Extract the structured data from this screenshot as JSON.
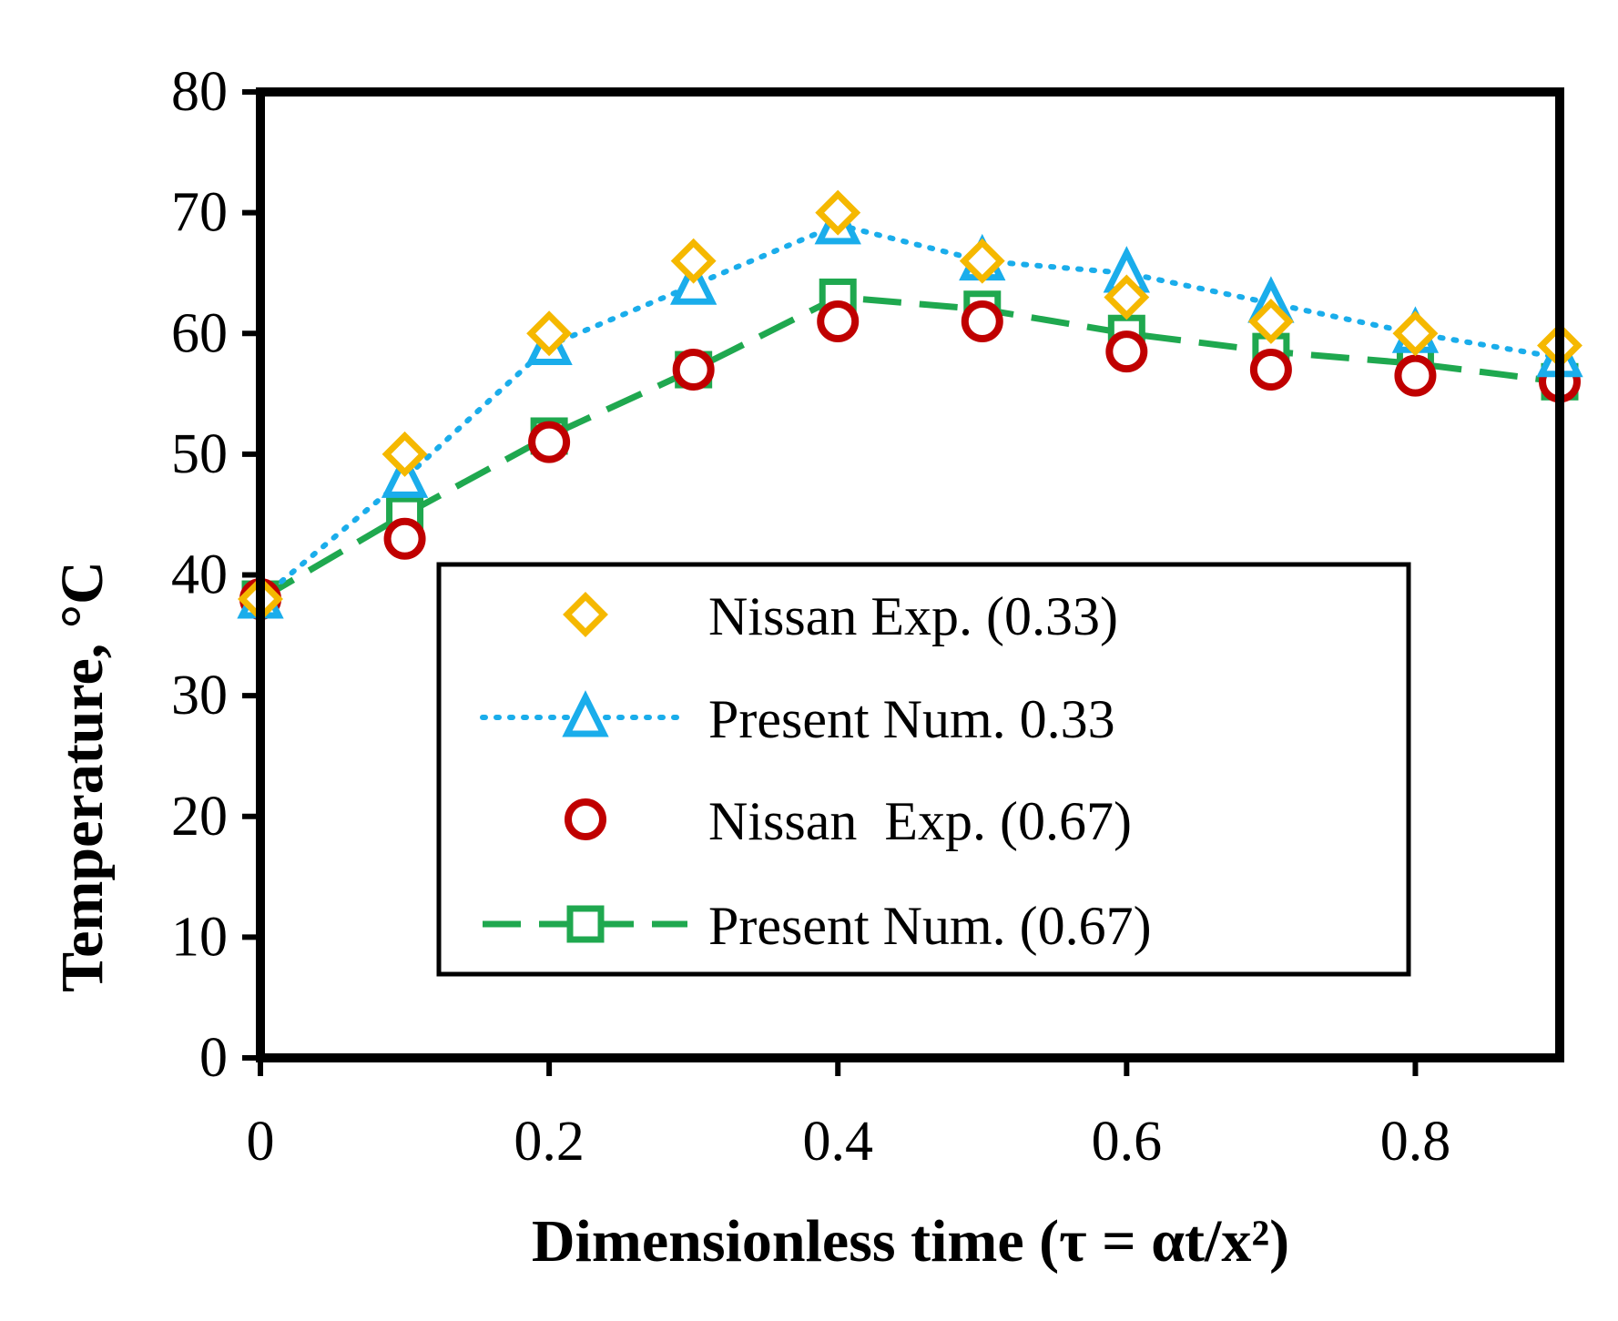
{
  "chart_data": {
    "type": "line",
    "xlabel": "Dimensionless time (τ = αt/x²)",
    "ylabel": "Temperature, °C",
    "xlim": [
      0,
      0.9
    ],
    "ylim": [
      0,
      80
    ],
    "x_ticks": [
      0,
      0.2,
      0.4,
      0.6,
      0.8
    ],
    "x_tick_labels": [
      "0",
      "0.2",
      "0.4",
      "0.6",
      "0.8"
    ],
    "y_ticks": [
      0,
      10,
      20,
      30,
      40,
      50,
      60,
      70,
      80
    ],
    "y_tick_labels": [
      "0",
      "10",
      "20",
      "30",
      "40",
      "50",
      "60",
      "70",
      "80"
    ],
    "grid": false,
    "legend_position": "lower-right",
    "x": [
      0,
      0.1,
      0.2,
      0.3,
      0.4,
      0.5,
      0.6,
      0.7,
      0.8,
      0.9
    ],
    "series": [
      {
        "name": "Nissan Exp. (0.33)",
        "marker": "diamond",
        "line": "none",
        "color": "#F5B800",
        "values": [
          38,
          50,
          60,
          66,
          70,
          66,
          63,
          61,
          60,
          59
        ]
      },
      {
        "name": "Present Num. 0.33",
        "marker": "triangle",
        "line": "dotted",
        "color": "#1AADEB",
        "values": [
          38,
          48,
          59,
          64,
          69,
          66,
          65,
          62.5,
          60,
          58
        ]
      },
      {
        "name": "Nissan  Exp. (0.67)",
        "marker": "circle",
        "line": "none",
        "color": "#C00000",
        "values": [
          38,
          43,
          51,
          57,
          61,
          61,
          58.5,
          57,
          56.5,
          56
        ]
      },
      {
        "name": "Present Num. (0.67)",
        "marker": "square",
        "line": "dashed",
        "color": "#1FA84F",
        "values": [
          38,
          45,
          51.5,
          57,
          63,
          62,
          60,
          58.5,
          57.5,
          56
        ]
      }
    ]
  }
}
